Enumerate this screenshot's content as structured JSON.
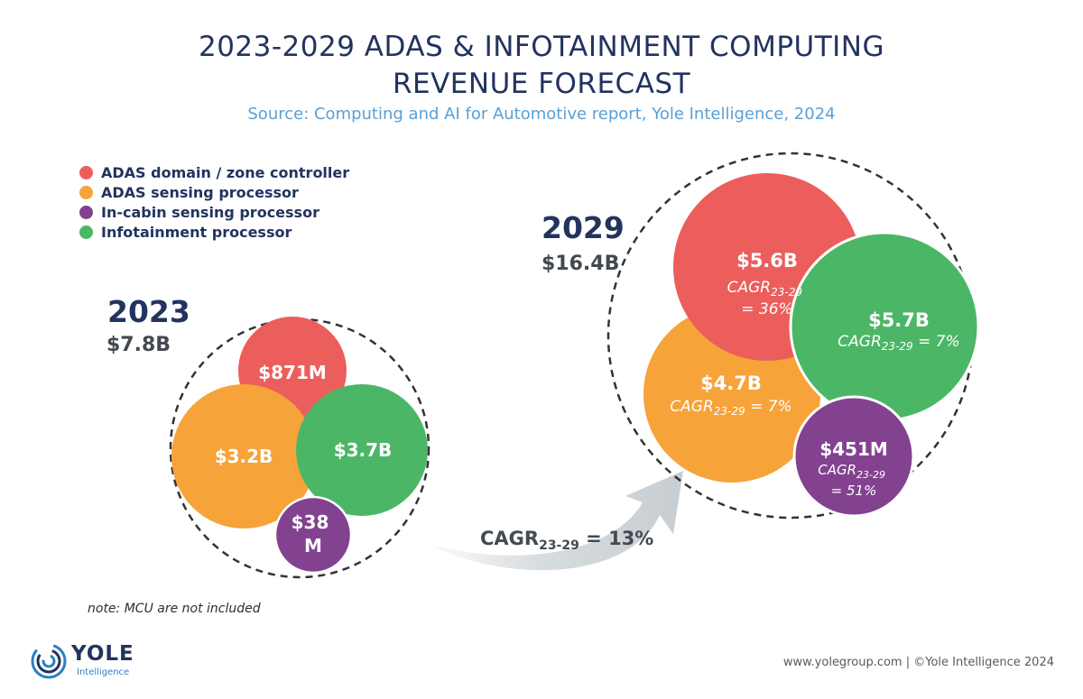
{
  "chart_data": {
    "type": "bubble",
    "title_line1": "2023-2029 ADAS & INFOTAINMENT COMPUTING",
    "title_line2": "REVENUE FORECAST",
    "subtitle": "Source: Computing and AI for Automotive report, Yole Intelligence, 2024",
    "legend": [
      {
        "name": "ADAS domain / zone controller",
        "color": "#eb5e5c"
      },
      {
        "name": "ADAS sensing processor",
        "color": "#f6a339"
      },
      {
        "name": "In-cabin sensing processor",
        "color": "#82428f"
      },
      {
        "name": "Infotainment processor",
        "color": "#4cb667"
      }
    ],
    "groups": [
      {
        "year": "2023",
        "total": "$7.8B",
        "total_value_busd": 7.8,
        "bubbles": [
          {
            "series": "ADAS domain / zone controller",
            "value_musd": 871,
            "label": "$871M"
          },
          {
            "series": "ADAS sensing processor",
            "value_musd": 3200,
            "label": "$3.2B"
          },
          {
            "series": "Infotainment processor",
            "value_musd": 3700,
            "label": "$3.7B"
          },
          {
            "series": "In-cabin sensing processor",
            "value_musd": 38,
            "label_lines": [
              "$38",
              "M"
            ]
          }
        ]
      },
      {
        "year": "2029",
        "total": "$16.4B",
        "total_value_busd": 16.4,
        "bubbles": [
          {
            "series": "ADAS domain / zone controller",
            "value_musd": 5600,
            "label": "$5.6B",
            "cagr_label": "CAGR",
            "cagr_sub": "23-29",
            "cagr_lines": [
              "",
              "= 36%"
            ]
          },
          {
            "series": "Infotainment processor",
            "value_musd": 5700,
            "label": "$5.7B",
            "cagr_label": "CAGR",
            "cagr_sub": "23-29",
            "cagr_suffix": " = 7%"
          },
          {
            "series": "ADAS sensing processor",
            "value_musd": 4700,
            "label": "$4.7B",
            "cagr_label": "CAGR",
            "cagr_sub": "23-29",
            "cagr_suffix": " = 7%"
          },
          {
            "series": "In-cabin sensing processor",
            "value_musd": 451,
            "label": "$451M",
            "cagr_label": "CAGR",
            "cagr_sub": "23-29",
            "cagr_lines": [
              "",
              "= 51%"
            ]
          }
        ]
      }
    ],
    "overall_cagr": {
      "label": "CAGR",
      "sub": "23-29",
      "value": " = 13%"
    }
  },
  "note": "note: MCU are not included",
  "footer": "www.yolegroup.com | ©Yole Intelligence 2024",
  "logo": {
    "word": "YOLE",
    "sub": "Intelligence"
  }
}
